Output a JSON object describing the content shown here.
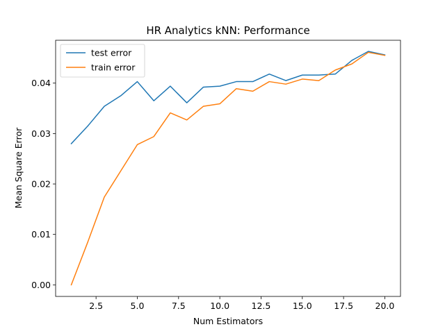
{
  "chart_data": {
    "type": "line",
    "title": "HR Analytics kNN: Performance",
    "xlabel": "Num Estimators",
    "ylabel": "Mean Square Error",
    "xlim": [
      0.05,
      20.95
    ],
    "ylim": [
      -0.0023,
      0.0485
    ],
    "xticks": [
      2.5,
      5.0,
      7.5,
      10.0,
      12.5,
      15.0,
      17.5,
      20.0
    ],
    "xtick_labels": [
      "2.5",
      "5.0",
      "7.5",
      "10.0",
      "12.5",
      "15.0",
      "17.5",
      "20.0"
    ],
    "yticks": [
      0.0,
      0.01,
      0.02,
      0.03,
      0.04
    ],
    "ytick_labels": [
      "0.00",
      "0.01",
      "0.02",
      "0.03",
      "0.04"
    ],
    "grid": false,
    "legend_position": "top-left",
    "x": [
      1,
      2,
      3,
      4,
      5,
      6,
      7,
      8,
      9,
      10,
      11,
      12,
      13,
      14,
      15,
      16,
      17,
      18,
      19,
      20
    ],
    "series": [
      {
        "name": "test error",
        "color": "#1f77b4",
        "values": [
          0.028,
          0.0315,
          0.0354,
          0.0375,
          0.0403,
          0.0365,
          0.0394,
          0.0361,
          0.0392,
          0.0394,
          0.0403,
          0.0403,
          0.0418,
          0.0405,
          0.0416,
          0.0416,
          0.0418,
          0.0445,
          0.0463,
          0.0456
        ]
      },
      {
        "name": "train error",
        "color": "#ff7f0e",
        "values": [
          0.0,
          0.0085,
          0.0174,
          0.0226,
          0.0278,
          0.0294,
          0.0341,
          0.0327,
          0.0354,
          0.0359,
          0.0389,
          0.0384,
          0.0403,
          0.0398,
          0.0408,
          0.0405,
          0.0426,
          0.0438,
          0.0461,
          0.0455
        ]
      }
    ]
  }
}
